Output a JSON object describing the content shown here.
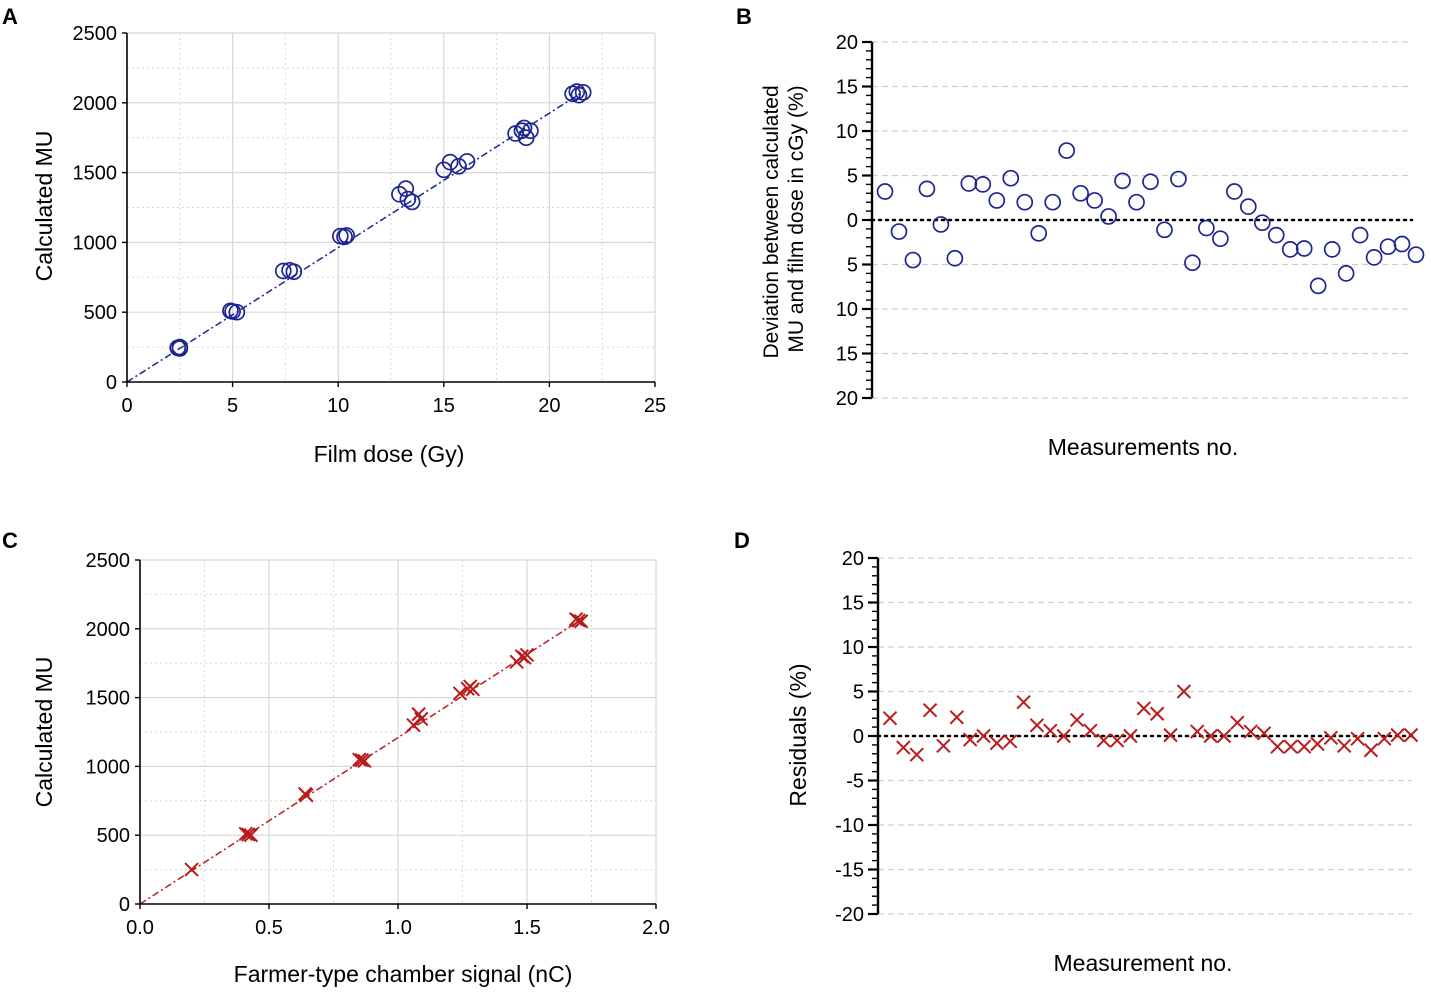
{
  "colors": {
    "blue": "#1c2591",
    "red": "#b81c1c",
    "axis": "#000000",
    "grid": "#d7d7d7",
    "hgrid": "#cfcfcf"
  },
  "chart_data": [
    {
      "id": "A",
      "panel_label": "A",
      "type": "scatter",
      "xlabel": "Film dose (Gy)",
      "ylabel": "Calculated MU",
      "xlim": [
        0,
        25
      ],
      "ylim": [
        0,
        2500
      ],
      "xticks": [
        0,
        5,
        10,
        15,
        20,
        25
      ],
      "xtick_labels": [
        "0",
        "5",
        "10",
        "15",
        "20",
        "25"
      ],
      "yticks": [
        0,
        500,
        1000,
        1500,
        2000,
        2500
      ],
      "ytick_labels": [
        "0",
        "500",
        "1000",
        "1500",
        "2000",
        "2500"
      ],
      "grid": true,
      "marker": "circle",
      "color": "#1c2591",
      "fit_line": {
        "x": [
          0,
          21.6
        ],
        "y": [
          0,
          2080
        ]
      },
      "points": [
        [
          2.4,
          245
        ],
        [
          2.5,
          240
        ],
        [
          2.5,
          250
        ],
        [
          4.9,
          510
        ],
        [
          5.0,
          505
        ],
        [
          5.2,
          500
        ],
        [
          7.4,
          795
        ],
        [
          7.7,
          800
        ],
        [
          7.9,
          790
        ],
        [
          10.1,
          1045
        ],
        [
          10.3,
          1040
        ],
        [
          10.4,
          1050
        ],
        [
          12.9,
          1345
        ],
        [
          13.2,
          1385
        ],
        [
          13.3,
          1310
        ],
        [
          13.5,
          1290
        ],
        [
          15.0,
          1520
        ],
        [
          15.3,
          1575
        ],
        [
          15.7,
          1545
        ],
        [
          16.1,
          1580
        ],
        [
          18.4,
          1780
        ],
        [
          18.7,
          1800
        ],
        [
          18.8,
          1820
        ],
        [
          18.9,
          1750
        ],
        [
          19.1,
          1800
        ],
        [
          21.1,
          2065
        ],
        [
          21.3,
          2080
        ],
        [
          21.4,
          2055
        ],
        [
          21.6,
          2075
        ]
      ]
    },
    {
      "id": "B",
      "panel_label": "B",
      "type": "scatter",
      "xlabel": "Measurements no.",
      "ylabel": "Deviation between calculated MU and film dose in cGy (%)",
      "ylabel_lines": [
        "Deviation between calculated",
        "MU and film dose in cGy (%)"
      ],
      "ylim": [
        -20,
        20
      ],
      "yticks": [
        -20,
        -15,
        -10,
        -5,
        0,
        5,
        10,
        15,
        20
      ],
      "ytick_labels": [
        "20",
        "15",
        "10",
        "5",
        "0",
        "5",
        "10",
        "15",
        "20"
      ],
      "zero_line": "dotted",
      "grid": "horizontal-dashed",
      "marker": "circle",
      "color": "#1c2591",
      "values": [
        3.2,
        -1.3,
        -4.5,
        3.5,
        -0.5,
        -4.3,
        4.1,
        4.0,
        2.2,
        4.7,
        2.0,
        -1.5,
        2.0,
        7.8,
        3.0,
        2.2,
        0.4,
        4.4,
        2.0,
        4.3,
        -1.1,
        4.6,
        -4.8,
        -0.9,
        -2.1,
        3.2,
        1.5,
        -0.3,
        -1.7,
        -3.3,
        -3.2,
        -7.4,
        -3.3,
        -6.0,
        -1.7,
        -4.2,
        -3.0,
        -2.7,
        -3.9
      ]
    },
    {
      "id": "C",
      "panel_label": "C",
      "type": "scatter",
      "xlabel": "Farmer-type chamber signal (nC)",
      "ylabel": "Calculated MU",
      "xlim": [
        0,
        2
      ],
      "ylim": [
        0,
        2500
      ],
      "xticks": [
        0,
        0.5,
        1,
        1.5,
        2
      ],
      "xtick_labels": [
        "0.0",
        "0.5",
        "1.0",
        "1.5",
        "2.0"
      ],
      "yticks": [
        0,
        500,
        1000,
        1500,
        2000,
        2500
      ],
      "ytick_labels": [
        "0",
        "500",
        "1000",
        "1500",
        "2000",
        "2500"
      ],
      "grid": true,
      "marker": "x",
      "color": "#b81c1c",
      "fit_line": {
        "x": [
          0,
          1.72
        ],
        "y": [
          0,
          2080
        ]
      },
      "points": [
        [
          0.2,
          250
        ],
        [
          0.41,
          510
        ],
        [
          0.42,
          505
        ],
        [
          0.43,
          500
        ],
        [
          0.64,
          800
        ],
        [
          0.645,
          790
        ],
        [
          0.85,
          1050
        ],
        [
          0.86,
          1045
        ],
        [
          0.87,
          1040
        ],
        [
          1.06,
          1300
        ],
        [
          1.08,
          1380
        ],
        [
          1.09,
          1345
        ],
        [
          1.24,
          1530
        ],
        [
          1.27,
          1565
        ],
        [
          1.28,
          1580
        ],
        [
          1.29,
          1560
        ],
        [
          1.46,
          1760
        ],
        [
          1.48,
          1800
        ],
        [
          1.49,
          1790
        ],
        [
          1.5,
          1810
        ],
        [
          1.69,
          2070
        ],
        [
          1.7,
          2060
        ],
        [
          1.71,
          2055
        ]
      ]
    },
    {
      "id": "D",
      "panel_label": "D",
      "type": "scatter",
      "xlabel": "Measurement no.",
      "ylabel": "Residuals (%)",
      "ylim": [
        -20,
        20
      ],
      "yticks": [
        -20,
        -15,
        -10,
        -5,
        0,
        5,
        10,
        15,
        20
      ],
      "ytick_labels": [
        "-20",
        "-15",
        "-10",
        "-5",
        "0",
        "5",
        "10",
        "15",
        "20"
      ],
      "zero_line": "dotted",
      "grid": "horizontal-dashed",
      "marker": "x",
      "color": "#b81c1c",
      "values": [
        2.0,
        -1.3,
        -2.1,
        2.9,
        -1.1,
        2.1,
        -0.4,
        0.0,
        -0.8,
        -0.6,
        3.8,
        1.2,
        0.6,
        0.0,
        1.8,
        0.6,
        -0.5,
        -0.5,
        0.0,
        3.1,
        2.5,
        0.1,
        5.0,
        0.5,
        0.0,
        0.0,
        1.5,
        0.5,
        0.3,
        -1.2,
        -1.2,
        -1.2,
        -0.9,
        -0.2,
        -1.1,
        -0.3,
        -1.6,
        -0.3,
        0.1,
        0.1
      ]
    }
  ]
}
